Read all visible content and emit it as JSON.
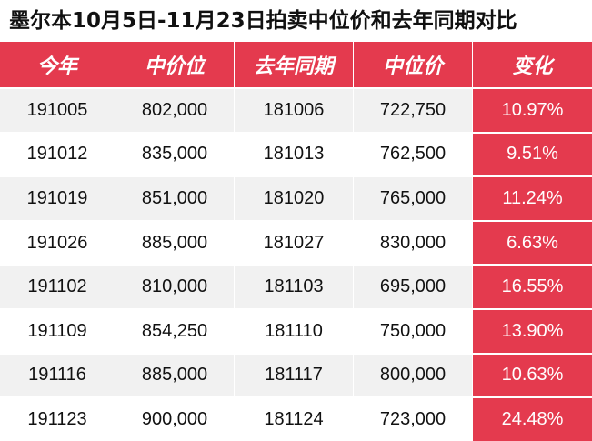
{
  "title": "墨尔本10月5日-11月23日拍卖中位价和去年同期对比",
  "headers": [
    "今年",
    "中价位",
    "去年同期",
    "中位价",
    "变化"
  ],
  "rows": [
    {
      "this_year": "191005",
      "median_this": "802,000",
      "last_year": "181006",
      "median_last": "722,750",
      "change": "10.97%"
    },
    {
      "this_year": "191012",
      "median_this": "835,000",
      "last_year": "181013",
      "median_last": "762,500",
      "change": "9.51%"
    },
    {
      "this_year": "191019",
      "median_this": "851,000",
      "last_year": "181020",
      "median_last": "765,000",
      "change": "11.24%"
    },
    {
      "this_year": "191026",
      "median_this": "885,000",
      "last_year": "181027",
      "median_last": "830,000",
      "change": "6.63%"
    },
    {
      "this_year": "191102",
      "median_this": "810,000",
      "last_year": "181103",
      "median_last": "695,000",
      "change": "16.55%"
    },
    {
      "this_year": "191109",
      "median_this": "854,250",
      "last_year": "181110",
      "median_last": "750,000",
      "change": "13.90%"
    },
    {
      "this_year": "191116",
      "median_this": "885,000",
      "last_year": "181117",
      "median_last": "800,000",
      "change": "10.63%"
    },
    {
      "this_year": "191123",
      "median_this": "900,000",
      "last_year": "181124",
      "median_last": "723,000",
      "change": "24.48%"
    }
  ],
  "colors": {
    "accent": "#e43a4e",
    "row_shade": "#f1f1f1"
  }
}
